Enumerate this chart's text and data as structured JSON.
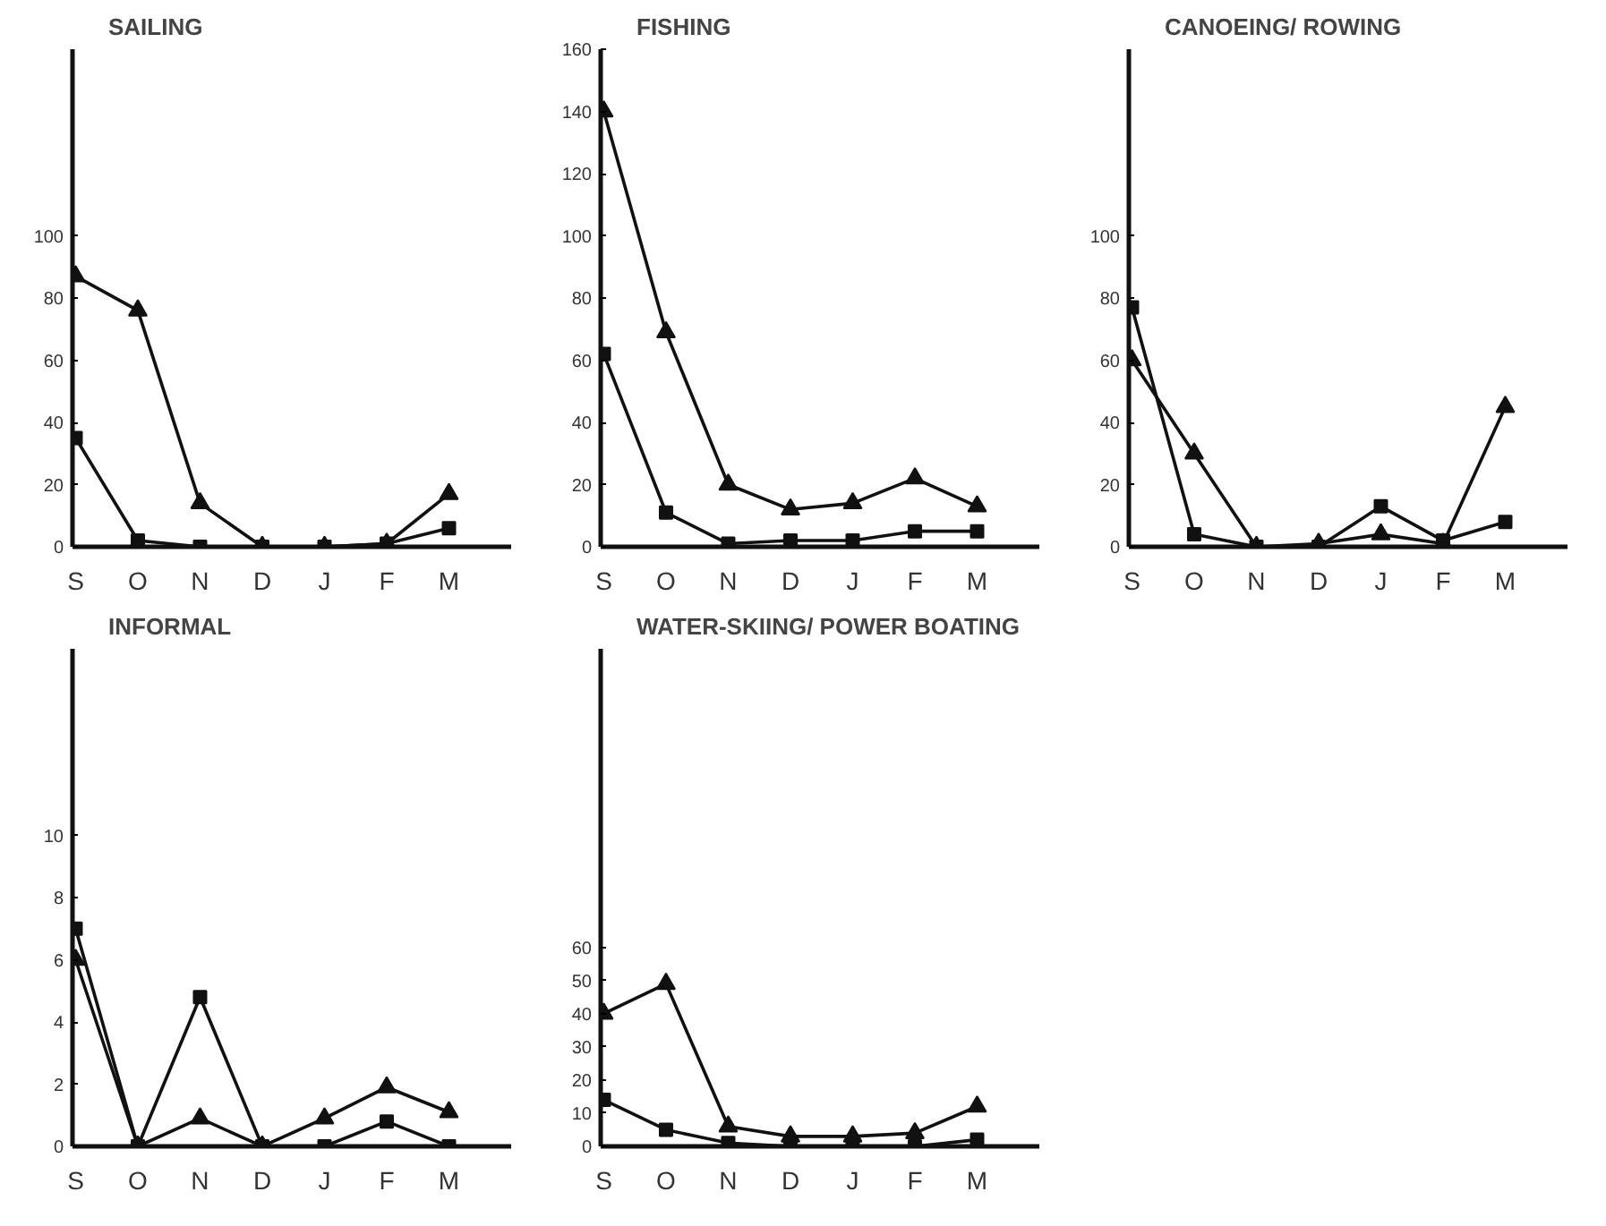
{
  "chart_data": [
    {
      "type": "line",
      "title": "SAILING",
      "categories": [
        "S",
        "O",
        "N",
        "D",
        "J",
        "F",
        "M"
      ],
      "ylim": [
        0,
        160
      ],
      "yticks": [
        0,
        20,
        40,
        60,
        80,
        100
      ],
      "grid": false,
      "series": [
        {
          "color": "#111111",
          "marker": "triangle",
          "values": [
            87,
            76,
            14,
            0,
            0,
            1,
            17
          ]
        },
        {
          "color": "#111111",
          "marker": "square",
          "values": [
            35,
            2,
            0,
            0,
            0,
            1,
            6
          ]
        }
      ]
    },
    {
      "type": "line",
      "title": "FISHING",
      "categories": [
        "S",
        "O",
        "N",
        "D",
        "J",
        "F",
        "M"
      ],
      "ylim": [
        0,
        160
      ],
      "yticks": [
        0,
        20,
        40,
        60,
        80,
        100,
        120,
        140,
        160
      ],
      "grid": false,
      "series": [
        {
          "color": "#111111",
          "marker": "triangle",
          "values": [
            140,
            69,
            20,
            12,
            14,
            22,
            13
          ]
        },
        {
          "color": "#111111",
          "marker": "square",
          "values": [
            62,
            11,
            1,
            2,
            2,
            5,
            5
          ]
        }
      ]
    },
    {
      "type": "line",
      "title": "CANOEING/ ROWING",
      "categories": [
        "S",
        "O",
        "N",
        "D",
        "J",
        "F",
        "M"
      ],
      "ylim": [
        0,
        160
      ],
      "yticks": [
        0,
        20,
        40,
        60,
        80,
        100
      ],
      "grid": false,
      "series": [
        {
          "color": "#111111",
          "marker": "triangle",
          "values": [
            60,
            30,
            0,
            1,
            4,
            1,
            45
          ]
        },
        {
          "color": "#111111",
          "marker": "square",
          "values": [
            77,
            4,
            0,
            0,
            13,
            2,
            8
          ]
        }
      ]
    },
    {
      "type": "line",
      "title": "INFORMAL",
      "categories": [
        "S",
        "O",
        "N",
        "D",
        "J",
        "F",
        "M"
      ],
      "ylim": [
        0,
        16
      ],
      "yticks": [
        0,
        2,
        4,
        6,
        8,
        10
      ],
      "grid": false,
      "series": [
        {
          "color": "#111111",
          "marker": "triangle",
          "values": [
            6,
            0,
            0.9,
            0,
            0.9,
            1.9,
            1.1
          ]
        },
        {
          "color": "#111111",
          "marker": "square",
          "values": [
            7,
            0,
            4.8,
            0,
            0,
            0.8,
            0
          ]
        }
      ]
    },
    {
      "type": "line",
      "title": "WATER-SKIING/ POWER BOATING",
      "categories": [
        "S",
        "O",
        "N",
        "D",
        "J",
        "F",
        "M"
      ],
      "ylim": [
        0,
        150
      ],
      "yticks": [
        0,
        10,
        20,
        30,
        40,
        50,
        60
      ],
      "grid": false,
      "series": [
        {
          "color": "#111111",
          "marker": "triangle",
          "values": [
            40,
            49,
            6,
            3,
            3,
            4,
            12
          ]
        },
        {
          "color": "#111111",
          "marker": "square",
          "values": [
            14,
            5,
            1,
            0,
            0,
            0,
            2
          ]
        }
      ]
    }
  ]
}
